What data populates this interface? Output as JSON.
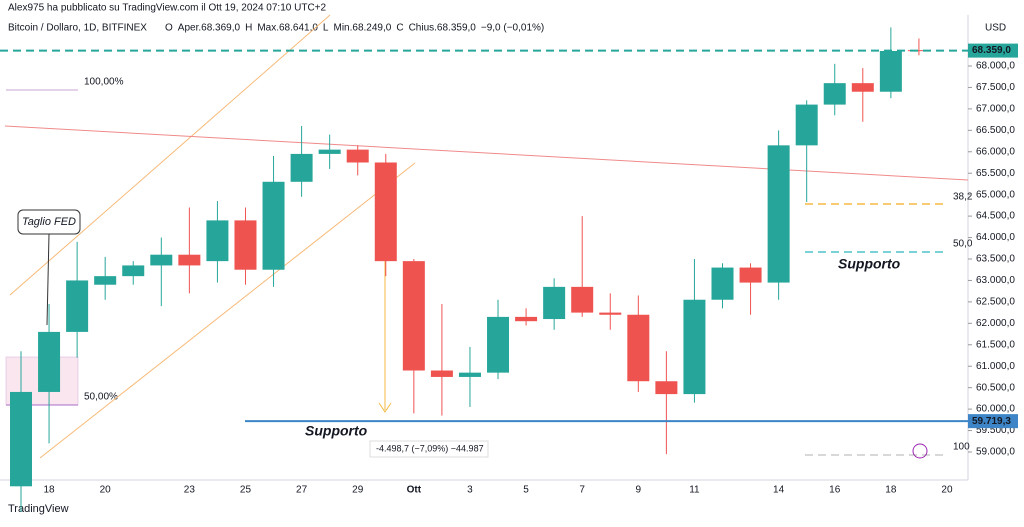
{
  "header": "Alex975 ha pubblicato su TradingView.com il Ott 19, 2024 07:10 UTC+2",
  "symbol": "Bitcoin / Dollaro, 1D, BITFINEX",
  "ohlc_legend": [
    {
      "label": "O",
      "value": ""
    },
    {
      "label": "Aper.",
      "value": "68.369,0"
    },
    {
      "label": "H",
      "value": ""
    },
    {
      "label": "Max.",
      "value": "68.641,0"
    },
    {
      "label": "L",
      "value": ""
    },
    {
      "label": "Min.",
      "value": "68.249,0"
    },
    {
      "label": "C",
      "value": ""
    },
    {
      "label": "Chius.",
      "value": "68.359,0"
    },
    {
      "label": "−9,0 (−0,01%)",
      "value": ""
    }
  ],
  "currency": "USD",
  "footer": "TradingView",
  "chart_data": {
    "type": "candlestick",
    "up_color": "#26a69a",
    "down_color": "#ef5350",
    "categories": [
      null,
      "18",
      null,
      "20",
      null,
      null,
      "23",
      null,
      "25",
      null,
      "27",
      null,
      "29",
      null,
      "Ott",
      null,
      "3",
      null,
      "5",
      null,
      "7",
      null,
      "9",
      null,
      "11",
      null,
      null,
      "14",
      null,
      "16",
      null,
      "18",
      null,
      "20"
    ],
    "open": [
      58200,
      60400,
      61800,
      62900,
      63100,
      63350,
      63600,
      63450,
      64400,
      63250,
      65300,
      65950,
      66050,
      65750,
      63450,
      60900,
      60750,
      60850,
      62150,
      62100,
      62850,
      62250,
      62200,
      60650,
      60350,
      62550,
      63300,
      62950,
      66150,
      67100,
      67600,
      67400,
      68369,
      null
    ],
    "high": [
      61350,
      62450,
      63900,
      63550,
      63450,
      64000,
      64700,
      64850,
      64700,
      65900,
      66600,
      66400,
      66150,
      65950,
      63500,
      62450,
      61450,
      62550,
      62350,
      63050,
      64500,
      62700,
      62650,
      61350,
      63500,
      63400,
      63400,
      66500,
      67200,
      68050,
      67950,
      68900,
      68641,
      null
    ],
    "low": [
      57600,
      59200,
      61200,
      62550,
      62900,
      62400,
      62700,
      62950,
      62900,
      62850,
      64950,
      65600,
      65450,
      63100,
      59900,
      59850,
      60050,
      60700,
      61950,
      61850,
      62150,
      61850,
      60400,
      58950,
      60150,
      62350,
      62200,
      62550,
      64830,
      66850,
      66700,
      67250,
      68249,
      null
    ],
    "close": [
      60400,
      61800,
      63000,
      63100,
      63350,
      63600,
      63350,
      64400,
      63250,
      65300,
      65950,
      66050,
      65750,
      63450,
      60900,
      60750,
      60850,
      62150,
      62050,
      62850,
      62250,
      62200,
      60650,
      60350,
      62550,
      63300,
      62950,
      66150,
      67100,
      67600,
      67400,
      68350,
      68359,
      null
    ],
    "ylim": [
      58347,
      69189
    ],
    "yticks": [
      {
        "value": 59000,
        "label": "59.000,0"
      },
      {
        "value": 59500,
        "label": "59.500,0"
      },
      {
        "value": 60000,
        "label": "60.000,0"
      },
      {
        "value": 60500,
        "label": "60.500,0"
      },
      {
        "value": 61000,
        "label": "61.000,0"
      },
      {
        "value": 61500,
        "label": "61.500,0"
      },
      {
        "value": 62000,
        "label": "62.000,0"
      },
      {
        "value": 62500,
        "label": "62.500,0"
      },
      {
        "value": 63000,
        "label": "63.000,0"
      },
      {
        "value": 63500,
        "label": "63.500,0"
      },
      {
        "value": 64000,
        "label": "64.000,0"
      },
      {
        "value": 64500,
        "label": "64.500,0"
      },
      {
        "value": 65000,
        "label": "65.000,0"
      },
      {
        "value": 65500,
        "label": "65.500,0"
      },
      {
        "value": 66000,
        "label": "66.000,0"
      },
      {
        "value": 66500,
        "label": "66.500,0"
      },
      {
        "value": 67000,
        "label": "67.000,0"
      },
      {
        "value": 67500,
        "label": "67.500,0"
      },
      {
        "value": 68000,
        "label": "68.000,0"
      }
    ],
    "price_lines": [
      {
        "value": 68359,
        "label": "68.359,0",
        "color": "#26a69a"
      },
      {
        "value": 59719.3,
        "label": "59.719,3",
        "color": "#3d85c6"
      }
    ],
    "annotations": [
      "Taglio FED",
      "Supporto",
      "Supporto",
      "-4.498,7 (−7,09%) −44.987",
      "100,00%",
      "50,00%",
      "38,2",
      "50,0",
      "100"
    ]
  }
}
